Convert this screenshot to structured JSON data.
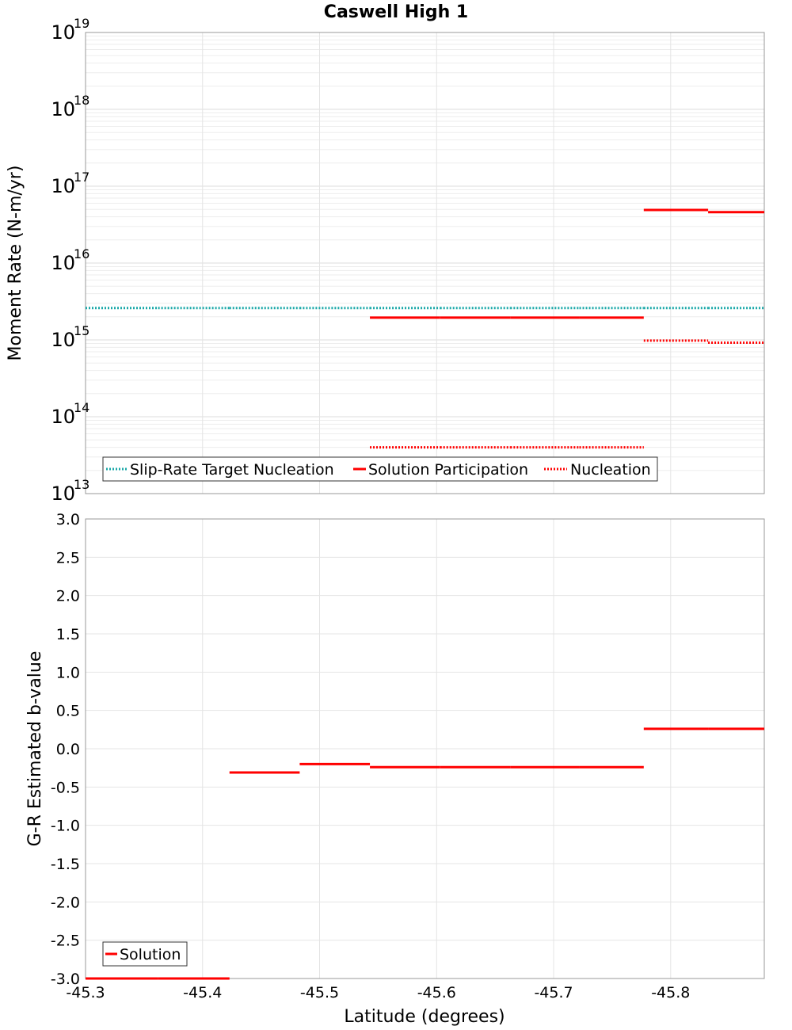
{
  "chart_data": [
    {
      "type": "line",
      "title": "Caswell High 1",
      "ylabel": "Moment Rate (N-m/yr)",
      "xlabel": "",
      "xlim": [
        -45.3,
        -45.88
      ],
      "ylim": [
        10000000000000.0,
        1e+19
      ],
      "yscale": "log",
      "grid": true,
      "legend_position": "bottom-left",
      "y_ticks": [
        {
          "base": "10",
          "exp": "13"
        },
        {
          "base": "10",
          "exp": "14"
        },
        {
          "base": "10",
          "exp": "15"
        },
        {
          "base": "10",
          "exp": "16"
        },
        {
          "base": "10",
          "exp": "17"
        },
        {
          "base": "10",
          "exp": "18"
        },
        {
          "base": "10",
          "exp": "19"
        }
      ],
      "series": [
        {
          "name": "Slip-Rate Target Nucleation",
          "color": "#1aa8a8",
          "style": "dotted",
          "segments": [
            {
              "x": [
                -45.3,
                -45.362
              ],
              "y": 2600000000000000.0
            },
            {
              "x": [
                -45.362,
                -45.423
              ],
              "y": 2600000000000000.0
            },
            {
              "x": [
                -45.423,
                -45.483
              ],
              "y": 2600000000000000.0
            },
            {
              "x": [
                -45.483,
                -45.543
              ],
              "y": 2600000000000000.0
            },
            {
              "x": [
                -45.543,
                -45.603
              ],
              "y": 2600000000000000.0
            },
            {
              "x": [
                -45.603,
                -45.663
              ],
              "y": 2600000000000000.0
            },
            {
              "x": [
                -45.663,
                -45.722
              ],
              "y": 2600000000000000.0
            },
            {
              "x": [
                -45.722,
                -45.777
              ],
              "y": 2600000000000000.0
            },
            {
              "x": [
                -45.777,
                -45.832
              ],
              "y": 2600000000000000.0
            },
            {
              "x": [
                -45.832,
                -45.88
              ],
              "y": 2600000000000000.0
            }
          ]
        },
        {
          "name": "Solution Participation",
          "color": "#ff0000",
          "style": "solid",
          "segments": [
            {
              "x": [
                -45.543,
                -45.603
              ],
              "y": 1950000000000000.0
            },
            {
              "x": [
                -45.603,
                -45.663
              ],
              "y": 1950000000000000.0
            },
            {
              "x": [
                -45.663,
                -45.722
              ],
              "y": 1950000000000000.0
            },
            {
              "x": [
                -45.722,
                -45.777
              ],
              "y": 1950000000000000.0
            },
            {
              "x": [
                -45.777,
                -45.832
              ],
              "y": 4.9e+16
            },
            {
              "x": [
                -45.832,
                -45.88
              ],
              "y": 4.6e+16
            }
          ]
        },
        {
          "name": "Nucleation",
          "color": "#ff0000",
          "style": "dotted",
          "segments": [
            {
              "x": [
                -45.543,
                -45.603
              ],
              "y": 40000000000000.0
            },
            {
              "x": [
                -45.603,
                -45.663
              ],
              "y": 40000000000000.0
            },
            {
              "x": [
                -45.663,
                -45.722
              ],
              "y": 40000000000000.0
            },
            {
              "x": [
                -45.722,
                -45.777
              ],
              "y": 40000000000000.0
            },
            {
              "x": [
                -45.777,
                -45.832
              ],
              "y": 980000000000000.0
            },
            {
              "x": [
                -45.832,
                -45.88
              ],
              "y": 920000000000000.0
            }
          ]
        }
      ]
    },
    {
      "type": "line",
      "title": "",
      "ylabel": "G-R Estimated b-value",
      "xlabel": "Latitude (degrees)",
      "xlim": [
        -45.3,
        -45.88
      ],
      "ylim": [
        -3.0,
        3.0
      ],
      "yscale": "linear",
      "grid": true,
      "legend_position": "bottom-left",
      "x_ticks": [
        "-45.3",
        "-45.4",
        "-45.5",
        "-45.6",
        "-45.7",
        "-45.8"
      ],
      "x_tick_values": [
        -45.3,
        -45.4,
        -45.5,
        -45.6,
        -45.7,
        -45.8
      ],
      "y_ticks": [
        "3.0",
        "2.5",
        "2.0",
        "1.5",
        "1.0",
        "0.5",
        "0.0",
        "-0.5",
        "-1.0",
        "-1.5",
        "-2.0",
        "-2.5",
        "-3.0"
      ],
      "y_tick_values": [
        3.0,
        2.5,
        2.0,
        1.5,
        1.0,
        0.5,
        0.0,
        -0.5,
        -1.0,
        -1.5,
        -2.0,
        -2.5,
        -3.0
      ],
      "series": [
        {
          "name": "Solution",
          "color": "#ff0000",
          "style": "solid",
          "segments": [
            {
              "x": [
                -45.3,
                -45.362
              ],
              "y": -3.0
            },
            {
              "x": [
                -45.362,
                -45.423
              ],
              "y": -3.0
            },
            {
              "x": [
                -45.423,
                -45.483
              ],
              "y": -0.31
            },
            {
              "x": [
                -45.483,
                -45.543
              ],
              "y": -0.2
            },
            {
              "x": [
                -45.543,
                -45.603
              ],
              "y": -0.24
            },
            {
              "x": [
                -45.603,
                -45.663
              ],
              "y": -0.24
            },
            {
              "x": [
                -45.663,
                -45.722
              ],
              "y": -0.24
            },
            {
              "x": [
                -45.722,
                -45.777
              ],
              "y": -0.24
            },
            {
              "x": [
                -45.777,
                -45.832
              ],
              "y": 0.26
            },
            {
              "x": [
                -45.832,
                -45.88
              ],
              "y": 0.26
            }
          ]
        }
      ]
    }
  ]
}
